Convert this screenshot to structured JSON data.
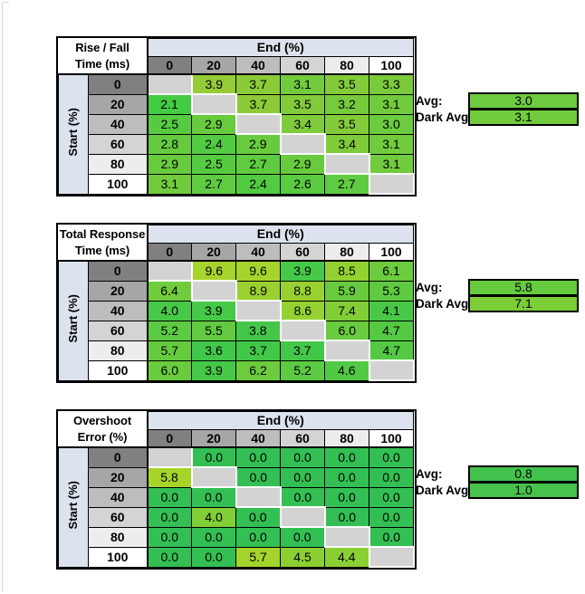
{
  "axis": {
    "end_label": "End (%)",
    "start_label": "Start (%)",
    "levels": [
      "0",
      "20",
      "40",
      "60",
      "80",
      "100"
    ]
  },
  "avg_labels": {
    "avg": "Avg:",
    "dark_avg": "Dark Avg:"
  },
  "palette": {
    "band_blue": "#DCE3EE",
    "diagonal_gray": "#D3D3D3",
    "level_grays": {
      "0": "#808080",
      "20": "#A6A6A6",
      "40": "#BDBDBD",
      "60": "#D4D4D4",
      "80": "#EDEDED",
      "100": "#FFFFFF"
    },
    "border_black": "#000000",
    "edge_gray": "#D8D8D8"
  },
  "tables": [
    {
      "id": "rise-fall-time",
      "title_line1": "Rise / Fall",
      "title_line2": "Time (ms)",
      "cells": [
        [
          null,
          {
            "v": "3.9",
            "c": "#95CB37"
          },
          {
            "v": "3.7",
            "c": "#8CCB38"
          },
          {
            "v": "3.1",
            "c": "#71CB3D"
          },
          {
            "v": "3.5",
            "c": "#83CB3A"
          },
          {
            "v": "3.3",
            "c": "#7ACB3B"
          }
        ],
        [
          {
            "v": "2.1",
            "c": "#44CB44"
          },
          null,
          {
            "v": "3.7",
            "c": "#8CCB38"
          },
          {
            "v": "3.5",
            "c": "#83CB3A"
          },
          {
            "v": "3.2",
            "c": "#76CB3C"
          },
          {
            "v": "3.1",
            "c": "#71CB3D"
          }
        ],
        [
          {
            "v": "2.5",
            "c": "#56CB41"
          },
          {
            "v": "2.9",
            "c": "#68CB3E"
          },
          null,
          {
            "v": "3.4",
            "c": "#7ECB3B"
          },
          {
            "v": "3.5",
            "c": "#83CB3A"
          },
          {
            "v": "3.0",
            "c": "#6CCB3E"
          }
        ],
        [
          {
            "v": "2.8",
            "c": "#64CB3F"
          },
          {
            "v": "2.4",
            "c": "#52CB42"
          },
          {
            "v": "2.9",
            "c": "#68CB3E"
          },
          null,
          {
            "v": "3.4",
            "c": "#7ECB3B"
          },
          {
            "v": "3.1",
            "c": "#71CB3D"
          }
        ],
        [
          {
            "v": "2.9",
            "c": "#68CB3E"
          },
          {
            "v": "2.5",
            "c": "#56CB41"
          },
          {
            "v": "2.7",
            "c": "#5FCB40"
          },
          {
            "v": "2.9",
            "c": "#68CB3E"
          },
          null,
          {
            "v": "3.1",
            "c": "#71CB3D"
          }
        ],
        [
          {
            "v": "3.1",
            "c": "#71CB3D"
          },
          {
            "v": "2.7",
            "c": "#5FCB40"
          },
          {
            "v": "2.4",
            "c": "#52CB42"
          },
          {
            "v": "2.6",
            "c": "#5ACB40"
          },
          {
            "v": "2.7",
            "c": "#5FCB40"
          },
          null
        ]
      ],
      "avg": {
        "v": "3.0",
        "c": "#6CCB3E"
      },
      "dark_avg": {
        "v": "3.1",
        "c": "#71CB3D"
      }
    },
    {
      "id": "total-response-time",
      "title_line1": "Total Response",
      "title_line2": "Time (ms)",
      "cells": [
        [
          null,
          {
            "v": "9.6",
            "c": "#A6D32C"
          },
          {
            "v": "9.6",
            "c": "#A6D32C"
          },
          {
            "v": "3.9",
            "c": "#46C848"
          },
          {
            "v": "8.5",
            "c": "#93D131"
          },
          {
            "v": "6.1",
            "c": "#6BCC3D"
          }
        ],
        [
          {
            "v": "6.4",
            "c": "#70CC3C"
          },
          null,
          {
            "v": "8.9",
            "c": "#9AD12F"
          },
          {
            "v": "8.8",
            "c": "#99D130"
          },
          {
            "v": "5.9",
            "c": "#68CB3E"
          },
          {
            "v": "5.3",
            "c": "#5ECA41"
          }
        ],
        [
          {
            "v": "4.0",
            "c": "#48C848"
          },
          {
            "v": "3.9",
            "c": "#46C848"
          },
          null,
          {
            "v": "8.6",
            "c": "#95D131"
          },
          {
            "v": "7.4",
            "c": "#81CE37"
          },
          {
            "v": "4.1",
            "c": "#49C847"
          }
        ],
        [
          {
            "v": "5.2",
            "c": "#5CCA42"
          },
          {
            "v": "5.5",
            "c": "#61CA40"
          },
          {
            "v": "3.8",
            "c": "#44C749"
          },
          null,
          {
            "v": "6.0",
            "c": "#69CB3E"
          },
          {
            "v": "4.7",
            "c": "#54C944"
          }
        ],
        [
          {
            "v": "5.7",
            "c": "#64CB3F"
          },
          {
            "v": "3.6",
            "c": "#41C74A"
          },
          {
            "v": "3.7",
            "c": "#43C749"
          },
          {
            "v": "3.7",
            "c": "#43C749"
          },
          null,
          {
            "v": "4.7",
            "c": "#54C944"
          }
        ],
        [
          {
            "v": "6.0",
            "c": "#69CB3E"
          },
          {
            "v": "3.9",
            "c": "#46C848"
          },
          {
            "v": "6.2",
            "c": "#6DCC3D"
          },
          {
            "v": "5.2",
            "c": "#5CCA42"
          },
          {
            "v": "4.6",
            "c": "#52C945"
          },
          null
        ]
      ],
      "avg": {
        "v": "5.8",
        "c": "#66CB3F"
      },
      "dark_avg": {
        "v": "7.1",
        "c": "#7CCE38"
      }
    },
    {
      "id": "overshoot-error",
      "title_line1": "Overshoot",
      "title_line2": "Error (%)",
      "cells": [
        [
          null,
          {
            "v": "0.0",
            "c": "#33BF53"
          },
          {
            "v": "0.0",
            "c": "#33BF53"
          },
          {
            "v": "0.0",
            "c": "#33BF53"
          },
          {
            "v": "0.0",
            "c": "#33BF53"
          },
          {
            "v": "0.0",
            "c": "#33BF53"
          }
        ],
        [
          {
            "v": "5.8",
            "c": "#A6D42A"
          },
          null,
          {
            "v": "0.0",
            "c": "#33BF53"
          },
          {
            "v": "0.0",
            "c": "#33BF53"
          },
          {
            "v": "0.0",
            "c": "#33BF53"
          },
          {
            "v": "0.0",
            "c": "#33BF53"
          }
        ],
        [
          {
            "v": "0.0",
            "c": "#33BF53"
          },
          {
            "v": "0.0",
            "c": "#33BF53"
          },
          null,
          {
            "v": "0.0",
            "c": "#33BF53"
          },
          {
            "v": "0.0",
            "c": "#33BF53"
          },
          {
            "v": "0.0",
            "c": "#33BF53"
          }
        ],
        [
          {
            "v": "0.0",
            "c": "#33BF53"
          },
          {
            "v": "4.0",
            "c": "#82CE37"
          },
          {
            "v": "0.0",
            "c": "#33BF53"
          },
          null,
          {
            "v": "0.0",
            "c": "#33BF53"
          },
          {
            "v": "0.0",
            "c": "#33BF53"
          }
        ],
        [
          {
            "v": "0.0",
            "c": "#33BF53"
          },
          {
            "v": "0.0",
            "c": "#33BF53"
          },
          {
            "v": "0.0",
            "c": "#33BF53"
          },
          {
            "v": "0.0",
            "c": "#33BF53"
          },
          null,
          {
            "v": "0.0",
            "c": "#33BF53"
          }
        ],
        [
          {
            "v": "0.0",
            "c": "#33BF53"
          },
          {
            "v": "0.0",
            "c": "#33BF53"
          },
          {
            "v": "5.7",
            "c": "#A4D42B"
          },
          {
            "v": "4.5",
            "c": "#8CCF33"
          },
          {
            "v": "4.4",
            "c": "#8ACF34"
          },
          null
        ]
      ],
      "avg": {
        "v": "0.8",
        "c": "#43C24D"
      },
      "dark_avg": {
        "v": "1.0",
        "c": "#47C34C"
      }
    }
  ],
  "chart_data": [
    {
      "type": "heatmap",
      "title": "Rise / Fall Time (ms)",
      "xlabel": "End (%)",
      "ylabel": "Start (%)",
      "x": [
        0,
        20,
        40,
        60,
        80,
        100
      ],
      "y": [
        0,
        20,
        40,
        60,
        80,
        100
      ],
      "values": [
        [
          null,
          3.9,
          3.7,
          3.1,
          3.5,
          3.3
        ],
        [
          2.1,
          null,
          3.7,
          3.5,
          3.2,
          3.1
        ],
        [
          2.5,
          2.9,
          null,
          3.4,
          3.5,
          3.0
        ],
        [
          2.8,
          2.4,
          2.9,
          null,
          3.4,
          3.1
        ],
        [
          2.9,
          2.5,
          2.7,
          2.9,
          null,
          3.1
        ],
        [
          3.1,
          2.7,
          2.4,
          2.6,
          2.7,
          null
        ]
      ],
      "avg": 3.0,
      "dark_avg": 3.1,
      "color_scale": "green (low) to yellow-green (high), diagonal blank"
    },
    {
      "type": "heatmap",
      "title": "Total Response Time (ms)",
      "xlabel": "End (%)",
      "ylabel": "Start (%)",
      "x": [
        0,
        20,
        40,
        60,
        80,
        100
      ],
      "y": [
        0,
        20,
        40,
        60,
        80,
        100
      ],
      "values": [
        [
          null,
          9.6,
          9.6,
          3.9,
          8.5,
          6.1
        ],
        [
          6.4,
          null,
          8.9,
          8.8,
          5.9,
          5.3
        ],
        [
          4.0,
          3.9,
          null,
          8.6,
          7.4,
          4.1
        ],
        [
          5.2,
          5.5,
          3.8,
          null,
          6.0,
          4.7
        ],
        [
          5.7,
          3.6,
          3.7,
          3.7,
          null,
          4.7
        ],
        [
          6.0,
          3.9,
          6.2,
          5.2,
          4.6,
          null
        ]
      ],
      "avg": 5.8,
      "dark_avg": 7.1,
      "color_scale": "green (low) to yellow-green (high), diagonal blank"
    },
    {
      "type": "heatmap",
      "title": "Overshoot Error (%)",
      "xlabel": "End (%)",
      "ylabel": "Start (%)",
      "x": [
        0,
        20,
        40,
        60,
        80,
        100
      ],
      "y": [
        0,
        20,
        40,
        60,
        80,
        100
      ],
      "values": [
        [
          null,
          0.0,
          0.0,
          0.0,
          0.0,
          0.0
        ],
        [
          5.8,
          null,
          0.0,
          0.0,
          0.0,
          0.0
        ],
        [
          0.0,
          0.0,
          null,
          0.0,
          0.0,
          0.0
        ],
        [
          0.0,
          4.0,
          0.0,
          null,
          0.0,
          0.0
        ],
        [
          0.0,
          0.0,
          0.0,
          0.0,
          null,
          0.0
        ],
        [
          0.0,
          0.0,
          5.7,
          4.5,
          4.4,
          null
        ]
      ],
      "avg": 0.8,
      "dark_avg": 1.0,
      "color_scale": "green (low) to yellow-green (high), diagonal blank"
    }
  ]
}
